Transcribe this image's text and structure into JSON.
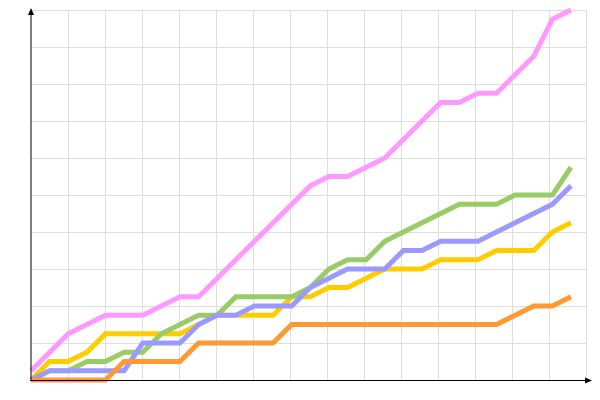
{
  "chart_data": {
    "type": "line",
    "title": "",
    "xlabel": "",
    "ylabel": "",
    "x": [
      0,
      1,
      2,
      3,
      4,
      5,
      6,
      7,
      8,
      9,
      10,
      11,
      12,
      13,
      14,
      15,
      16,
      17,
      18,
      19,
      20,
      21,
      22,
      23,
      24,
      25,
      26,
      27,
      28,
      29
    ],
    "ylim": [
      0,
      10
    ],
    "grid": true,
    "legend": "none",
    "series": [
      {
        "color": "#ff99ff",
        "values": [
          0.25,
          0.75,
          1.25,
          1.5,
          1.75,
          1.75,
          1.75,
          2.0,
          2.25,
          2.25,
          2.75,
          3.25,
          3.75,
          4.25,
          4.75,
          5.25,
          5.5,
          5.5,
          5.75,
          6.0,
          6.5,
          7.0,
          7.5,
          7.5,
          7.75,
          7.75,
          8.25,
          8.75,
          9.75,
          10.0
        ]
      },
      {
        "color": "#ffcc00",
        "values": [
          0,
          0.5,
          0.5,
          0.75,
          1.25,
          1.25,
          1.25,
          1.25,
          1.25,
          1.5,
          1.75,
          1.75,
          1.75,
          1.75,
          2.25,
          2.25,
          2.5,
          2.5,
          2.75,
          3.0,
          3.0,
          3.0,
          3.25,
          3.25,
          3.25,
          3.5,
          3.5,
          3.5,
          4.0,
          4.25
        ]
      },
      {
        "color": "#99cc66",
        "values": [
          0,
          0.25,
          0.25,
          0.5,
          0.5,
          0.75,
          0.75,
          1.25,
          1.5,
          1.75,
          1.75,
          2.25,
          2.25,
          2.25,
          2.25,
          2.5,
          3.0,
          3.25,
          3.25,
          3.75,
          4.0,
          4.25,
          4.5,
          4.75,
          4.75,
          4.75,
          5.0,
          5.0,
          5.0,
          5.75
        ]
      },
      {
        "color": "#9999ff",
        "values": [
          0,
          0.25,
          0.25,
          0.25,
          0.25,
          0.25,
          1.0,
          1.0,
          1.0,
          1.5,
          1.75,
          1.75,
          2.0,
          2.0,
          2.0,
          2.5,
          2.75,
          3.0,
          3.0,
          3.0,
          3.5,
          3.5,
          3.75,
          3.75,
          3.75,
          4.0,
          4.25,
          4.5,
          4.75,
          5.25
        ]
      },
      {
        "color": "#ff9933",
        "values": [
          0,
          0,
          0,
          0,
          0,
          0.5,
          0.5,
          0.5,
          0.5,
          1.0,
          1.0,
          1.0,
          1.0,
          1.0,
          1.5,
          1.5,
          1.5,
          1.5,
          1.5,
          1.5,
          1.5,
          1.5,
          1.5,
          1.5,
          1.5,
          1.5,
          1.75,
          2.0,
          2.0,
          2.25
        ]
      }
    ]
  }
}
